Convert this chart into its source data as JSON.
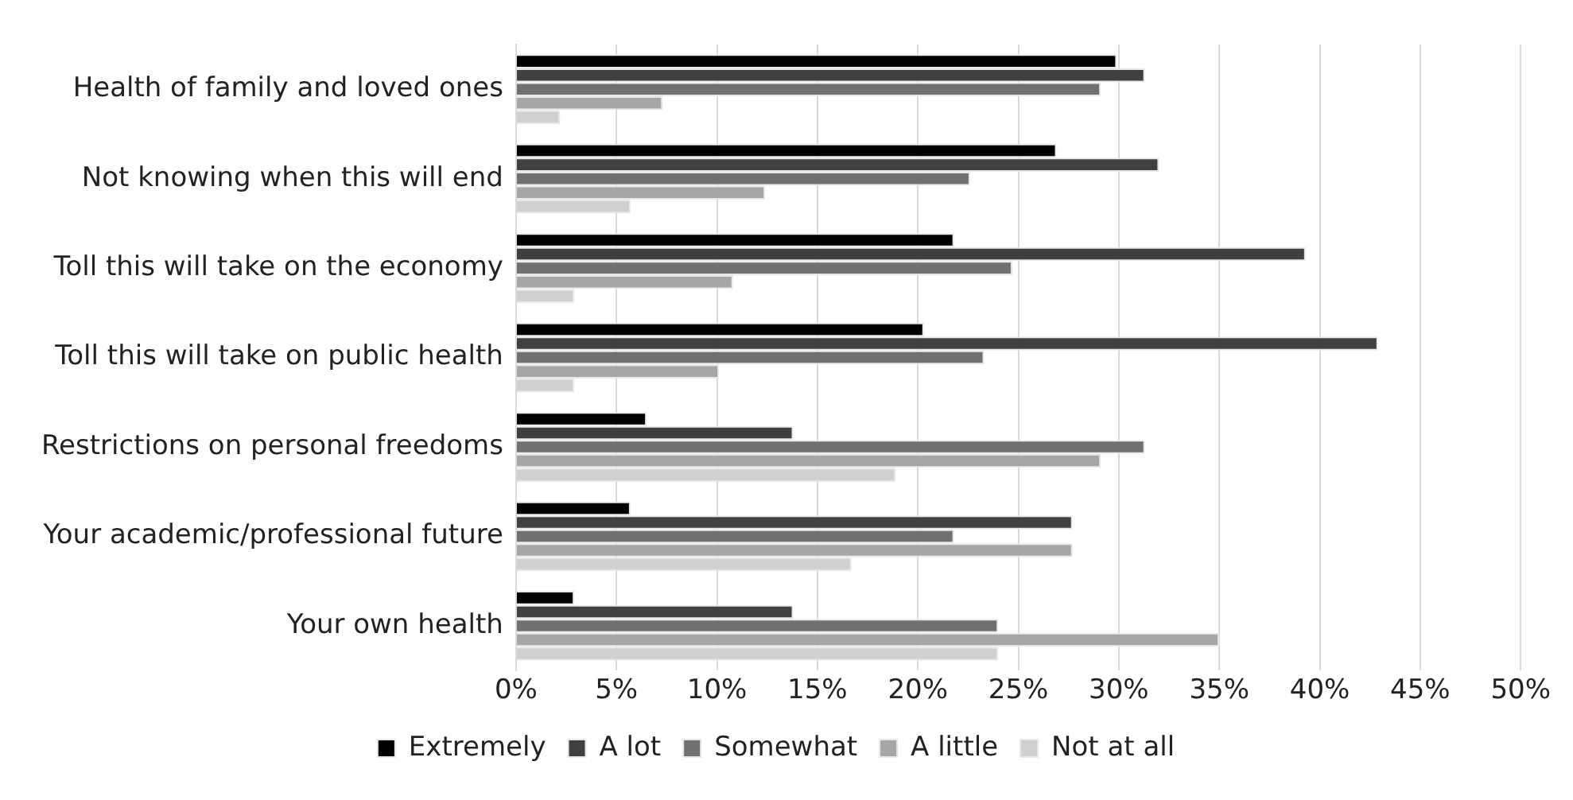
{
  "chart_data": {
    "type": "bar",
    "orientation": "horizontal",
    "categories": [
      "Health of family and loved ones",
      "Not knowing when this will end",
      "Toll this will take on the economy",
      "Toll this will take on public health",
      "Restrictions on personal freedoms",
      "Your academic/professional future",
      "Your own health"
    ],
    "series": [
      {
        "name": "Extremely",
        "color": "#000000",
        "values": [
          29.9,
          26.9,
          21.8,
          20.3,
          6.5,
          5.7,
          2.9
        ]
      },
      {
        "name": "A lot",
        "color": "#404040",
        "values": [
          31.3,
          32.0,
          39.3,
          42.9,
          13.8,
          27.7,
          13.8
        ]
      },
      {
        "name": "Somewhat",
        "color": "#707070",
        "values": [
          29.1,
          22.6,
          24.7,
          23.3,
          31.3,
          21.8,
          24.0
        ]
      },
      {
        "name": "A little",
        "color": "#a6a6a6",
        "values": [
          7.3,
          12.4,
          10.8,
          10.1,
          29.1,
          27.7,
          35.0
        ]
      },
      {
        "name": "Not at all",
        "color": "#d0d0d0",
        "values": [
          2.2,
          5.7,
          2.9,
          2.9,
          18.9,
          16.7,
          24.0
        ]
      }
    ],
    "xlim": [
      0,
      50
    ],
    "xticks": [
      {
        "value": 0,
        "label": "0%"
      },
      {
        "value": 5,
        "label": "5%"
      },
      {
        "value": 10,
        "label": "10%"
      },
      {
        "value": 15,
        "label": "15%"
      },
      {
        "value": 20,
        "label": "20%"
      },
      {
        "value": 25,
        "label": "25%"
      },
      {
        "value": 30,
        "label": "30%"
      },
      {
        "value": 35,
        "label": "35%"
      },
      {
        "value": 40,
        "label": "40%"
      },
      {
        "value": 45,
        "label": "45%"
      },
      {
        "value": 50,
        "label": "50%"
      }
    ],
    "grid": "x",
    "legend": "bottom"
  }
}
